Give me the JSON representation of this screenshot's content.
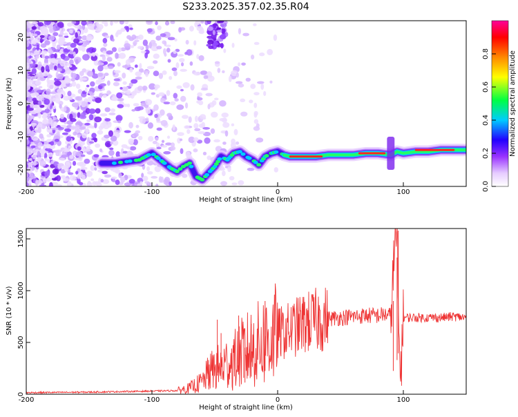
{
  "title": "S233.2025.357.02.35.R04",
  "chart_data": [
    {
      "type": "heatmap",
      "xlabel": "Height of straight line (km)",
      "ylabel": "Frequency (Hz)",
      "xlim": [
        -200,
        150
      ],
      "ylim": [
        -25,
        25
      ],
      "x_ticks": [
        -200,
        -100,
        0,
        100
      ],
      "x_tick_labels": [
        "-200",
        "-100",
        "0",
        "100"
      ],
      "y_ticks": [
        -20,
        -10,
        0,
        10,
        20
      ],
      "y_tick_labels": [
        "-20",
        "-10",
        "0",
        "10",
        "20"
      ],
      "colorbar": {
        "label": "Normalized spectral amplitude",
        "range": [
          0,
          1
        ],
        "ticks": [
          0,
          0.2,
          0.4,
          0.6,
          0.8
        ],
        "tick_labels": [
          "0.0",
          "0.2",
          "0.4",
          "0.6",
          "0.8"
        ],
        "colors": [
          "#ffffff",
          "#e6ccff",
          "#9933ff",
          "#2200ff",
          "#00ccff",
          "#00ff44",
          "#ffff00",
          "#ff8800",
          "#ff0000",
          "#ff0099"
        ]
      },
      "ridge": {
        "x": [
          -140,
          -130,
          -120,
          -110,
          -105,
          -100,
          -95,
          -90,
          -85,
          -80,
          -75,
          -70,
          -65,
          -60,
          -55,
          -50,
          -45,
          -40,
          -35,
          -30,
          -25,
          -20,
          -15,
          -10,
          -5,
          0,
          5,
          10,
          20,
          30,
          40,
          50,
          60,
          70,
          80,
          90,
          95,
          100,
          110,
          120,
          130,
          140,
          150
        ],
        "y": [
          -18,
          -18,
          -17.5,
          -17,
          -16,
          -15,
          -16.5,
          -18,
          -19.5,
          -20.5,
          -19,
          -18,
          -22,
          -23,
          -21,
          -19,
          -16,
          -17,
          -15,
          -14.5,
          -16,
          -17,
          -18.5,
          -16,
          -15,
          -14.5,
          -15.5,
          -16,
          -16,
          -16,
          -15.5,
          -15.5,
          -15.5,
          -15,
          -15,
          -15.5,
          -14.5,
          -15,
          -14.5,
          -14.5,
          -14,
          -14,
          -14
        ]
      }
    },
    {
      "type": "line",
      "xlabel": "Height of straight line (km)",
      "ylabel": "SNR (10 * v/v)",
      "xlim": [
        -200,
        150
      ],
      "ylim": [
        0,
        1600
      ],
      "x_ticks": [
        -200,
        -100,
        0,
        100
      ],
      "x_tick_labels": [
        "-200",
        "-100",
        "0",
        "100"
      ],
      "y_ticks": [
        0,
        500,
        1000,
        1500
      ],
      "y_tick_labels": [
        "0",
        "500",
        "1000",
        "1500"
      ],
      "color": "#ee3333",
      "series": [
        {
          "name": "SNR",
          "x": [
            -200,
            -150,
            -100,
            -80,
            -70,
            -60,
            -55,
            -50,
            -45,
            -40,
            -35,
            -30,
            -25,
            -20,
            -15,
            -10,
            -5,
            0,
            10,
            20,
            30,
            40,
            50,
            60,
            70,
            80,
            85,
            90,
            92,
            94,
            95,
            96,
            97,
            98,
            100,
            110,
            120,
            130,
            140,
            150
          ],
          "y": [
            15,
            20,
            30,
            35,
            60,
            120,
            200,
            250,
            260,
            300,
            320,
            380,
            420,
            450,
            480,
            520,
            550,
            580,
            620,
            680,
            710,
            730,
            740,
            750,
            760,
            760,
            770,
            760,
            1200,
            1500,
            1550,
            700,
            400,
            240,
            740,
            740,
            740,
            740,
            750,
            740
          ]
        }
      ],
      "spikes": [
        {
          "x": -55,
          "y": 330
        },
        {
          "x": -48,
          "y": 720
        },
        {
          "x": -45,
          "y": 590
        },
        {
          "x": -31,
          "y": 760
        },
        {
          "x": -27,
          "y": 630
        },
        {
          "x": -26,
          "y": 450
        },
        {
          "x": -21,
          "y": 680
        },
        {
          "x": -10,
          "y": 900
        },
        {
          "x": 92,
          "y": 900
        },
        {
          "x": 95,
          "y": 1320
        },
        {
          "x": 96,
          "y": 1580
        }
      ]
    }
  ]
}
